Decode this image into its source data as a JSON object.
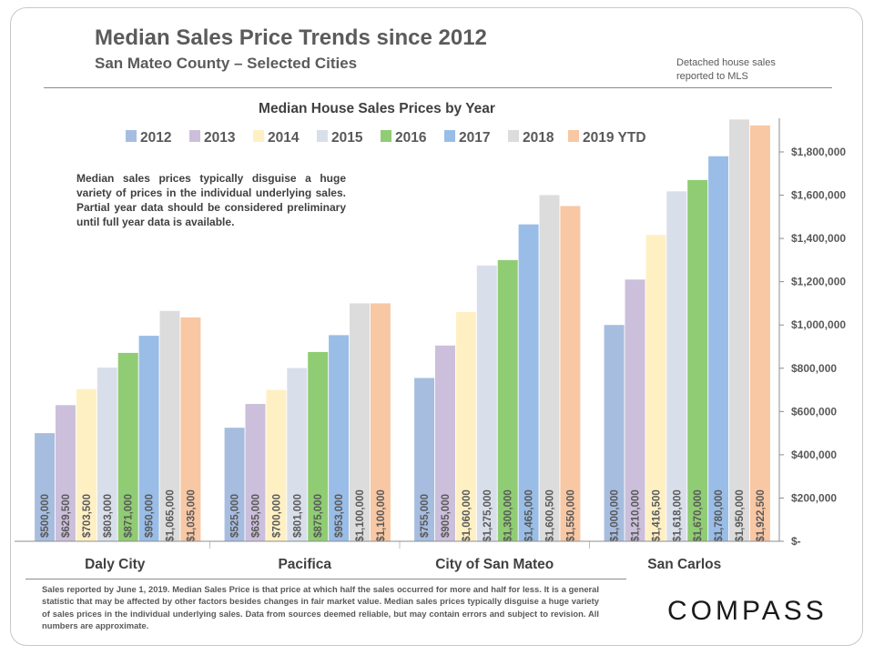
{
  "header": {
    "title": "Median Sales Price Trends since 2012",
    "subtitle": "San Mateo County – Selected Cities",
    "note_line1": "Detached house sales",
    "note_line2": "reported to MLS"
  },
  "description": "Median sales prices typically disguise a huge variety of prices in the individual underlying sales. Partial year data should be considered preliminary until full year data is available.",
  "footnote": "Sales reported by June 1, 2019. Median Sales Price is that price at which half the sales occurred for more and half for less. It is a general statistic that may be affected by other factors besides changes in fair market value. Median sales prices typically disguise a huge variety of sales prices in the individual underlying sales. Data from sources deemed reliable, but may contain errors and subject to revision.   All numbers are approximate.",
  "logo": "COMPASS",
  "chart_data": {
    "type": "bar",
    "title": "Median House Sales Prices by Year",
    "categories": [
      "Daly City",
      "Pacifica",
      "City of San Mateo",
      "San Carlos"
    ],
    "series": [
      {
        "name": "2012",
        "color": "#a6bddf",
        "values": [
          500000,
          525000,
          755000,
          1000000
        ],
        "labels": [
          "$500,000",
          "$525,000",
          "$755,000",
          "$1,000,000"
        ]
      },
      {
        "name": "2013",
        "color": "#cbbfdb",
        "values": [
          629500,
          635000,
          905000,
          1210000
        ],
        "labels": [
          "$629,500",
          "$635,000",
          "$905,000",
          "$1,210,000"
        ]
      },
      {
        "name": "2014",
        "color": "#fff0c4",
        "values": [
          703500,
          700000,
          1060000,
          1416500
        ],
        "labels": [
          "$703,500",
          "$700,000",
          "$1,060,000",
          "$1,416,500"
        ]
      },
      {
        "name": "2015",
        "color": "#d9dfea",
        "values": [
          803000,
          801000,
          1275000,
          1618000
        ],
        "labels": [
          "$803,000",
          "$801,000",
          "$1,275,000",
          "$1,618,000"
        ]
      },
      {
        "name": "2016",
        "color": "#90cc73",
        "values": [
          871000,
          875000,
          1300000,
          1670000
        ],
        "labels": [
          "$871,000",
          "$875,000",
          "$1,300,000",
          "$1,670,000"
        ]
      },
      {
        "name": "2017",
        "color": "#99bde6",
        "values": [
          950000,
          953000,
          1465000,
          1780000
        ],
        "labels": [
          "$950,000",
          "$953,000",
          "$1,465,000",
          "$1,780,000"
        ]
      },
      {
        "name": "2018",
        "color": "#dcdcdc",
        "values": [
          1065000,
          1100000,
          1600500,
          1950000
        ],
        "labels": [
          "$1,065,000",
          "$1,100,000",
          "$1,600,500",
          "$1,950,000"
        ]
      },
      {
        "name": "2019 YTD",
        "color": "#f8c7a4",
        "values": [
          1035000,
          1100000,
          1550000,
          1922500
        ],
        "labels": [
          "$1,035,000",
          "$1,100,000",
          "$1,550,000",
          "$1,922,500"
        ]
      }
    ],
    "yticks": [
      {
        "value": 0,
        "label": "$-"
      },
      {
        "value": 200000,
        "label": "$200,000"
      },
      {
        "value": 400000,
        "label": "$400,000"
      },
      {
        "value": 600000,
        "label": "$600,000"
      },
      {
        "value": 800000,
        "label": "$800,000"
      },
      {
        "value": 1000000,
        "label": "$1,000,000"
      },
      {
        "value": 1200000,
        "label": "$1,200,000"
      },
      {
        "value": 1400000,
        "label": "$1,400,000"
      },
      {
        "value": 1600000,
        "label": "$1,600,000"
      },
      {
        "value": 1800000,
        "label": "$1,800,000"
      }
    ],
    "ylim": [
      0,
      2000000
    ],
    "xlabel": "",
    "ylabel": "",
    "axis_side": "right",
    "legend_position": "top",
    "grid": false
  }
}
